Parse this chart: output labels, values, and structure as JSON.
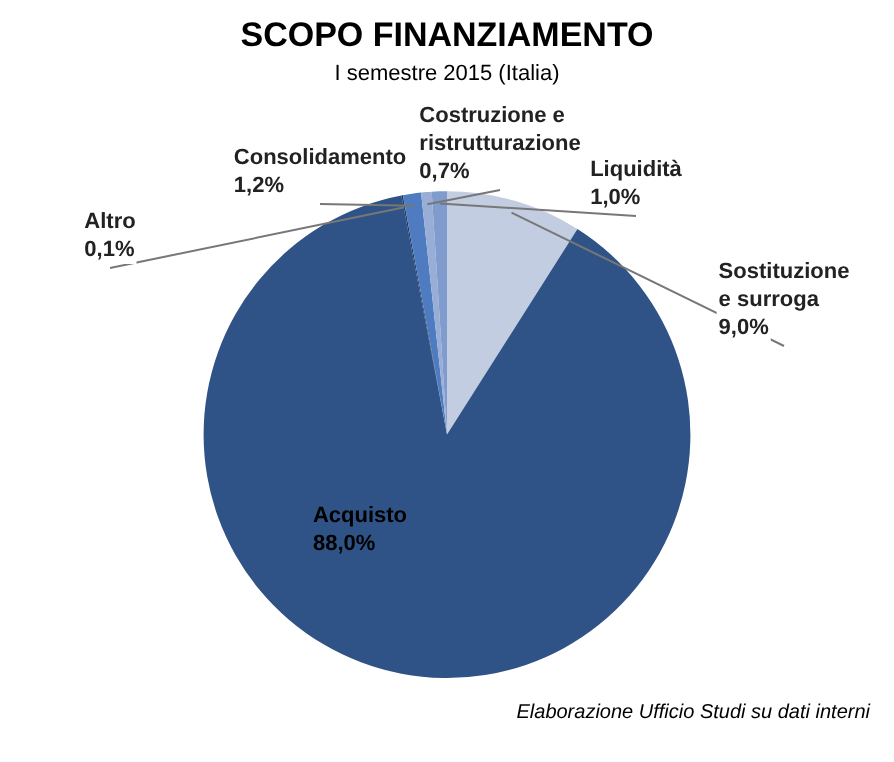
{
  "chart_data": {
    "type": "pie",
    "title": "SCOPO FINANZIAMENTO",
    "subtitle": "I semestre 2015 (Italia)",
    "categories": [
      "Sostituzione e surroga",
      "Acquisto",
      "Altro",
      "Consolidamento",
      "Costruzione e ristrutturazione",
      "Liquidità"
    ],
    "values": [
      9.0,
      88.0,
      0.1,
      1.2,
      0.7,
      1.0
    ],
    "value_labels": [
      "9,0%",
      "88,0%",
      "0,1%",
      "1,2%",
      "0,7%",
      "1,0%"
    ],
    "colors": [
      "#c3cde2",
      "#2f5386",
      "#1f3a66",
      "#4f7cc0",
      "#98aed6",
      "#7f9ccc"
    ],
    "legend": false,
    "annotations": [
      "Elaborazione Ufficio Studi su dati interni"
    ]
  }
}
